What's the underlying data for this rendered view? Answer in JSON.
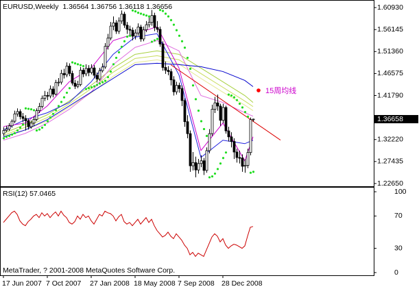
{
  "chart_data": [
    {
      "type": "candlestick",
      "title": "EURUSD,Weekly  1.36564 1.36756 1.36118 1.36656",
      "xlim": [
        -1.25,
        135
      ],
      "xticks": [
        {
          "value": 0,
          "label": "17 Jun 2007"
        },
        {
          "value": 16,
          "label": "7 Oct 2007"
        },
        {
          "value": 32,
          "label": "27 Jan 2008"
        },
        {
          "value": 48,
          "label": "18 May 2008"
        },
        {
          "value": 64,
          "label": "7 Sep 2008"
        },
        {
          "value": 80,
          "label": "28 Dec 2008"
        }
      ],
      "ylim": [
        1.2205,
        1.6243
      ],
      "yticks": [
        {
          "value": 1.6093,
          "label": "1.60930"
        },
        1.56145,
        {
          "value": 1.5136,
          "label": "1.51360"
        },
        1.46575,
        {
          "value": 1.4179,
          "label": "1.41790"
        },
        {
          "value": 1.3222,
          "label": "1.32220"
        },
        1.27435,
        {
          "value": 1.2265,
          "label": "1.22650"
        }
      ],
      "last_price": 1.36658,
      "up_color": "#ffffff",
      "down_color": "#000000",
      "ohlc": [
        [
          1.335,
          1.349,
          1.33,
          1.342
        ],
        [
          1.342,
          1.352,
          1.338,
          1.345
        ],
        [
          1.345,
          1.358,
          1.341,
          1.352
        ],
        [
          1.352,
          1.366,
          1.348,
          1.362
        ],
        [
          1.362,
          1.385,
          1.358,
          1.378
        ],
        [
          1.378,
          1.39,
          1.372,
          1.383
        ],
        [
          1.383,
          1.388,
          1.366,
          1.372
        ],
        [
          1.372,
          1.38,
          1.36,
          1.368
        ],
        [
          1.368,
          1.375,
          1.342,
          1.363
        ],
        [
          1.363,
          1.368,
          1.344,
          1.35
        ],
        [
          1.35,
          1.364,
          1.346,
          1.358
        ],
        [
          1.358,
          1.372,
          1.352,
          1.366
        ],
        [
          1.366,
          1.39,
          1.362,
          1.385
        ],
        [
          1.385,
          1.402,
          1.38,
          1.394
        ],
        [
          1.394,
          1.418,
          1.39,
          1.412
        ],
        [
          1.412,
          1.428,
          1.406,
          1.418
        ],
        [
          1.418,
          1.426,
          1.408,
          1.417
        ],
        [
          1.417,
          1.44,
          1.412,
          1.432
        ],
        [
          1.432,
          1.438,
          1.414,
          1.421
        ],
        [
          1.421,
          1.452,
          1.418,
          1.446
        ],
        [
          1.446,
          1.456,
          1.438,
          1.447
        ],
        [
          1.447,
          1.474,
          1.442,
          1.466
        ],
        [
          1.466,
          1.476,
          1.455,
          1.463
        ],
        [
          1.463,
          1.49,
          1.458,
          1.482
        ],
        [
          1.482,
          1.488,
          1.46,
          1.466
        ],
        [
          1.466,
          1.472,
          1.44,
          1.445
        ],
        [
          1.445,
          1.452,
          1.432,
          1.438
        ],
        [
          1.438,
          1.45,
          1.434,
          1.442
        ],
        [
          1.442,
          1.48,
          1.438,
          1.473
        ],
        [
          1.473,
          1.478,
          1.458,
          1.465
        ],
        [
          1.465,
          1.486,
          1.46,
          1.477
        ],
        [
          1.477,
          1.484,
          1.46,
          1.468
        ],
        [
          1.468,
          1.486,
          1.464,
          1.478
        ],
        [
          1.478,
          1.484,
          1.455,
          1.462
        ],
        [
          1.462,
          1.468,
          1.446,
          1.454
        ],
        [
          1.454,
          1.478,
          1.45,
          1.472
        ],
        [
          1.472,
          1.488,
          1.468,
          1.48
        ],
        [
          1.48,
          1.532,
          1.476,
          1.525
        ],
        [
          1.525,
          1.552,
          1.518,
          1.543
        ],
        [
          1.543,
          1.578,
          1.538,
          1.569
        ],
        [
          1.569,
          1.59,
          1.56,
          1.576
        ],
        [
          1.576,
          1.582,
          1.552,
          1.558
        ],
        [
          1.558,
          1.588,
          1.552,
          1.58
        ],
        [
          1.58,
          1.603,
          1.574,
          1.595
        ],
        [
          1.595,
          1.6,
          1.565,
          1.571
        ],
        [
          1.571,
          1.578,
          1.552,
          1.562
        ],
        [
          1.562,
          1.57,
          1.548,
          1.56
        ],
        [
          1.56,
          1.566,
          1.538,
          1.547
        ],
        [
          1.547,
          1.562,
          1.54,
          1.554
        ],
        [
          1.554,
          1.575,
          1.548,
          1.567
        ],
        [
          1.567,
          1.572,
          1.535,
          1.541
        ],
        [
          1.541,
          1.568,
          1.536,
          1.561
        ],
        [
          1.561,
          1.58,
          1.556,
          1.572
        ],
        [
          1.572,
          1.59,
          1.566,
          1.577
        ],
        [
          1.577,
          1.604,
          1.57,
          1.592
        ],
        [
          1.592,
          1.598,
          1.558,
          1.566
        ],
        [
          1.566,
          1.58,
          1.555,
          1.562
        ],
        [
          1.562,
          1.568,
          1.524,
          1.53
        ],
        [
          1.53,
          1.536,
          1.472,
          1.479
        ],
        [
          1.479,
          1.492,
          1.465,
          1.473
        ],
        [
          1.473,
          1.482,
          1.462,
          1.47
        ],
        [
          1.47,
          1.476,
          1.44,
          1.452
        ],
        [
          1.452,
          1.46,
          1.418,
          1.426
        ],
        [
          1.426,
          1.448,
          1.42,
          1.44
        ],
        [
          1.44,
          1.446,
          1.424,
          1.433
        ],
        [
          1.433,
          1.44,
          1.395,
          1.407
        ],
        [
          1.407,
          1.412,
          1.35,
          1.361
        ],
        [
          1.361,
          1.375,
          1.325,
          1.335
        ],
        [
          1.335,
          1.342,
          1.252,
          1.265
        ],
        [
          1.265,
          1.295,
          1.255,
          1.272
        ],
        [
          1.272,
          1.285,
          1.24,
          1.256
        ],
        [
          1.256,
          1.28,
          1.248,
          1.27
        ],
        [
          1.27,
          1.288,
          1.262,
          1.276
        ],
        [
          1.276,
          1.282,
          1.245,
          1.255
        ],
        [
          1.255,
          1.305,
          1.25,
          1.298
        ],
        [
          1.298,
          1.345,
          1.292,
          1.335
        ],
        [
          1.335,
          1.398,
          1.33,
          1.388
        ],
        [
          1.388,
          1.415,
          1.38,
          1.402
        ],
        [
          1.402,
          1.42,
          1.385,
          1.395
        ],
        [
          1.395,
          1.4,
          1.352,
          1.364
        ],
        [
          1.364,
          1.4,
          1.358,
          1.392
        ],
        [
          1.392,
          1.396,
          1.335,
          1.341
        ],
        [
          1.341,
          1.35,
          1.318,
          1.328
        ],
        [
          1.328,
          1.338,
          1.305,
          1.318
        ],
        [
          1.318,
          1.325,
          1.28,
          1.295
        ],
        [
          1.295,
          1.302,
          1.272,
          1.283
        ],
        [
          1.283,
          1.298,
          1.27,
          1.282
        ],
        [
          1.282,
          1.29,
          1.252,
          1.264
        ],
        [
          1.264,
          1.28,
          1.25,
          1.266
        ],
        [
          1.266,
          1.302,
          1.26,
          1.294
        ],
        [
          1.294,
          1.37,
          1.288,
          1.3656
        ],
        [
          1.3656,
          1.3676,
          1.3612,
          1.3666
        ]
      ],
      "lines": [
        {
          "color": "#e4e890",
          "x": [
            0,
            8,
            16,
            24,
            32,
            40,
            48,
            56,
            64,
            72,
            80,
            88,
            91
          ],
          "values": [
            1.3267,
            1.3431,
            1.3625,
            1.3924,
            1.4238,
            1.4597,
            1.4896,
            1.4956,
            1.4866,
            1.4552,
            1.4253,
            1.3969,
            1.385
          ]
        },
        {
          "color": "#c8dc5a",
          "x": [
            0,
            8,
            16,
            24,
            32,
            40,
            48,
            56,
            64,
            72,
            80,
            88,
            91
          ],
          "values": [
            1.3311,
            1.3491,
            1.37,
            1.3999,
            1.4328,
            1.4687,
            1.4986,
            1.5046,
            1.4956,
            1.4657,
            1.4358,
            1.4059,
            1.3939
          ]
        },
        {
          "color": "#a8d040",
          "x": [
            0,
            8,
            16,
            24,
            32,
            40,
            48,
            56,
            64,
            72,
            80,
            88,
            91
          ],
          "values": [
            1.3356,
            1.355,
            1.376,
            1.4059,
            1.4403,
            1.4777,
            1.5076,
            1.5151,
            1.5076,
            1.4777,
            1.4478,
            1.4179,
            1.4029
          ]
        },
        {
          "color": "#e070e0",
          "x": [
            0,
            8,
            16,
            24,
            32,
            40,
            48,
            56,
            64,
            72,
            80,
            88,
            91
          ],
          "values": [
            1.3207,
            1.3356,
            1.3581,
            1.388,
            1.4253,
            1.4852,
            1.5226,
            1.5375,
            1.5151,
            1.4179,
            1.4029,
            1.3805,
            1.373
          ]
        },
        {
          "color": "#0000cc",
          "x": [
            0,
            8,
            16,
            24,
            32,
            40,
            48,
            56,
            64,
            72,
            80,
            88,
            91
          ],
          "values": [
            1.3282,
            1.3431,
            1.3655,
            1.3954,
            1.4253,
            1.4552,
            1.4852,
            1.4881,
            1.4852,
            1.4807,
            1.4702,
            1.4508,
            1.4373
          ]
        },
        {
          "color": "#2020e0",
          "x": [
            0,
            8,
            16,
            24,
            32,
            40,
            48,
            56,
            64,
            72,
            80,
            88,
            91
          ],
          "values": [
            1.3431,
            1.3655,
            1.3805,
            1.4029,
            1.4478,
            1.5076,
            1.545,
            1.5525,
            1.4627,
            1.2833,
            1.3207,
            1.3132,
            1.3207
          ]
        },
        {
          "color": "#cc00cc",
          "x": [
            0,
            8,
            16,
            24,
            32,
            40,
            48,
            56,
            64,
            72,
            80,
            88,
            91
          ],
          "values": [
            1.3506,
            1.3581,
            1.3954,
            1.4478,
            1.4777,
            1.5375,
            1.5525,
            1.5674,
            1.4777,
            1.2983,
            1.3581,
            1.2758,
            1.3282
          ]
        }
      ],
      "trendline": {
        "color": "#dd0000",
        "x": [
          61,
          101
        ],
        "values": [
          1.485,
          1.321
        ]
      },
      "sar": {
        "color": "#22dd22",
        "values": [
          1.325,
          1.328,
          1.33,
          1.333,
          1.336,
          1.342,
          1.348,
          1.355,
          1.39,
          1.389,
          1.388,
          1.386,
          1.342,
          1.344,
          1.348,
          1.354,
          1.362,
          1.37,
          1.378,
          1.386,
          1.395,
          1.404,
          1.414,
          1.424,
          1.434,
          1.49,
          1.488,
          1.486,
          1.484,
          1.482,
          1.432,
          1.434,
          1.436,
          1.438,
          1.441,
          1.444,
          1.447,
          1.45,
          1.458,
          1.47,
          1.486,
          1.5,
          1.512,
          1.524,
          1.536,
          1.546,
          1.548,
          1.603,
          1.601,
          1.598,
          1.596,
          1.594,
          1.592,
          1.59,
          1.535,
          1.538,
          1.541,
          1.604,
          1.602,
          1.596,
          1.59,
          1.582,
          1.572,
          1.56,
          1.548,
          1.536,
          1.522,
          1.5,
          1.476,
          1.44,
          1.41,
          1.385,
          1.362,
          1.345,
          1.33,
          1.24,
          1.242,
          1.248,
          1.258,
          1.27,
          1.282,
          1.294,
          1.42,
          1.418,
          1.414,
          1.408,
          1.4,
          1.392,
          1.382,
          1.372,
          1.25,
          1.252
        ]
      },
      "annotation": {
        "text": "15周均线",
        "color": "#cc00cc",
        "marker_color": "#ff0000"
      }
    },
    {
      "type": "line",
      "title": "RSI(12) 57.0465",
      "copyright": "MetaTrader, ? 2001-2008 MetaQuotes Software Corp.",
      "xlim": [
        -1.25,
        135
      ],
      "ylim": [
        -3.4,
        105.1
      ],
      "yticks": [
        100,
        70,
        30,
        0
      ],
      "color": "#cc0000",
      "values": [
        62,
        66,
        70,
        74,
        76,
        72,
        64,
        60,
        58,
        63,
        66,
        70,
        72,
        68,
        74,
        70,
        73,
        68,
        72,
        75,
        70,
        76,
        71,
        68,
        62,
        60,
        63,
        70,
        66,
        72,
        68,
        70,
        64,
        60,
        66,
        72,
        70,
        76,
        74,
        73,
        70,
        64,
        69,
        72,
        63,
        60,
        62,
        58,
        62,
        66,
        60,
        64,
        68,
        62,
        66,
        58,
        52,
        48,
        44,
        46,
        50,
        45,
        42,
        48,
        44,
        40,
        34,
        30,
        22,
        25,
        20,
        24,
        22,
        20,
        28,
        36,
        44,
        48,
        45,
        38,
        42,
        34,
        30,
        33,
        35,
        34,
        32,
        30,
        33,
        45,
        56,
        57.0465
      ]
    }
  ]
}
